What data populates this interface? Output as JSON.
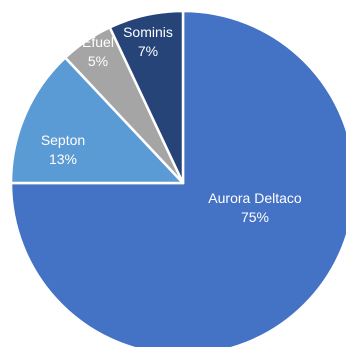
{
  "chart_data": {
    "type": "pie",
    "title": "",
    "start_angle_deg": 0,
    "direction": "clockwise",
    "slices": [
      {
        "label": "Aurora Deltaco",
        "value": 75,
        "value_label": "75%",
        "color": "#4472C4"
      },
      {
        "label": "Septon",
        "value": 13,
        "value_label": "13%",
        "color": "#5B9BD5"
      },
      {
        "label": "Efuel",
        "value": 5,
        "value_label": "5%",
        "color": "#A5A5A5"
      },
      {
        "label": "Sominis",
        "value": 7,
        "value_label": "7%",
        "color": "#264478"
      }
    ],
    "slice_border_color": "#FFFFFF"
  }
}
